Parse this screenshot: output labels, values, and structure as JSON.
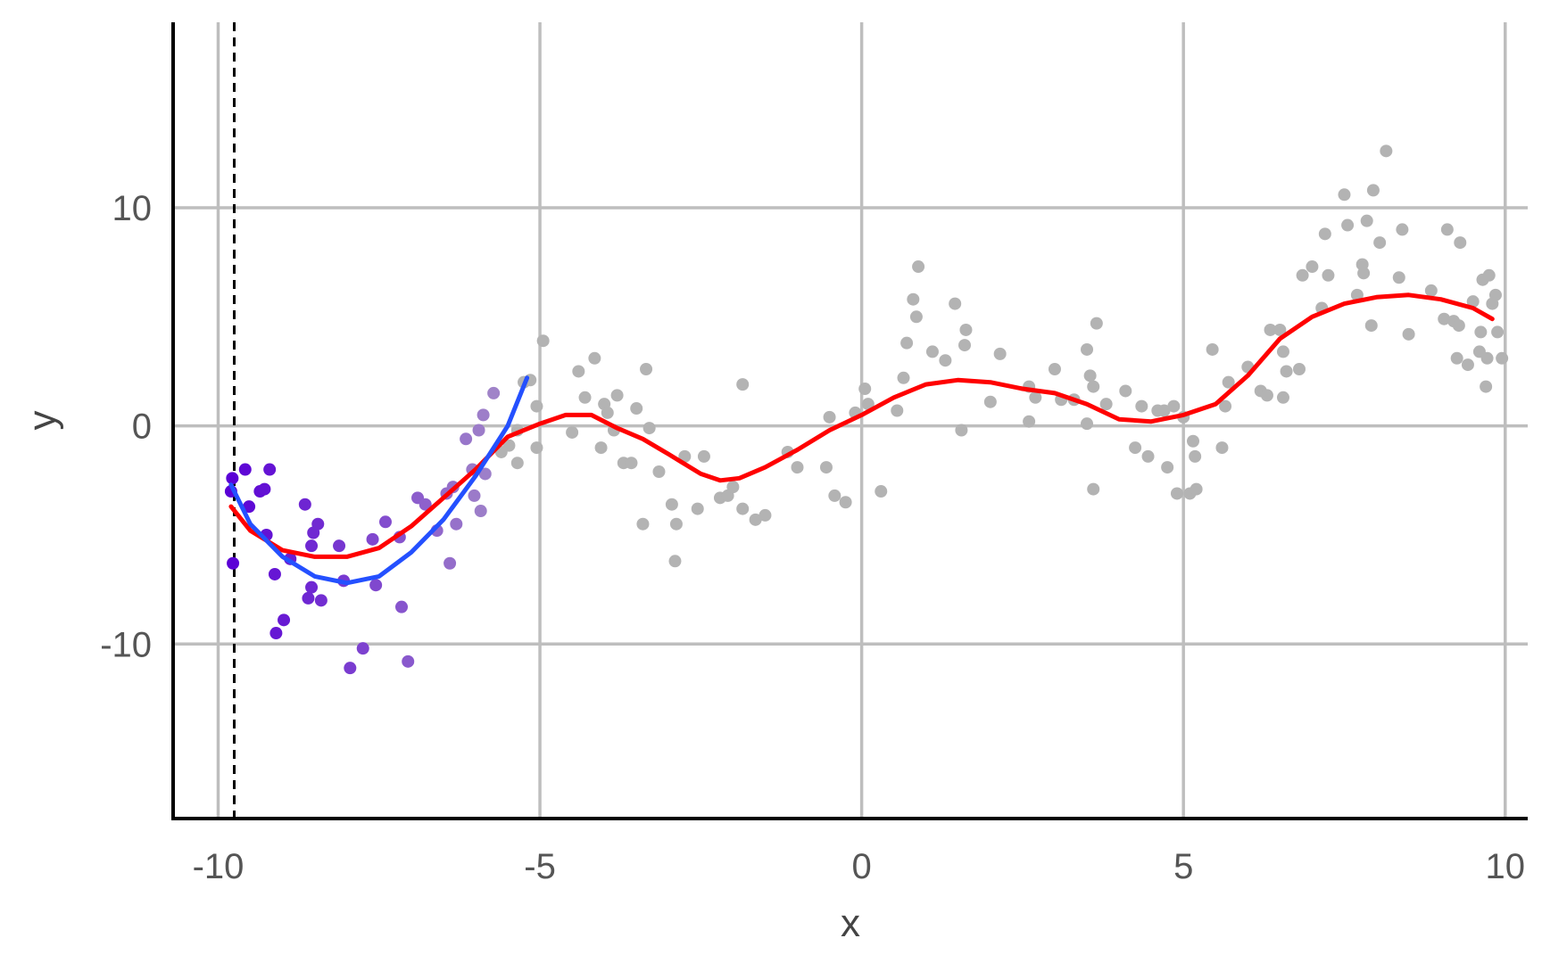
{
  "chart_data": {
    "type": "scatter",
    "title": "",
    "xlabel": "x",
    "ylabel": "y",
    "xlim": [
      -10.7,
      10.35
    ],
    "ylim": [
      -18,
      18.5
    ],
    "x_ticks": [
      -10,
      -5,
      0,
      5,
      10
    ],
    "x_tick_labels": [
      "-10",
      "-5",
      "0",
      "5",
      "10"
    ],
    "y_ticks": [
      -10,
      0,
      10
    ],
    "y_tick_labels": [
      "-10",
      "0",
      "10"
    ],
    "grid": true,
    "vline_x": -9.75,
    "colors": {
      "highlight_points_near": "#5a00d6",
      "highlight_points_far": "#a084c8",
      "background_points": "#b3b3b3",
      "global_smooth": "#ff0000",
      "local_fit": "#2450ff",
      "grid": "#bebebe",
      "axis": "#000000",
      "vline": "#000000"
    },
    "series": [
      {
        "kind": "scatter-highlight",
        "points": [
          [
            -9.78,
            -2.4
          ],
          [
            -9.8,
            -3
          ],
          [
            -9.77,
            -6.3
          ],
          [
            -9.58,
            -2
          ],
          [
            -9.52,
            -3.7
          ],
          [
            -9.35,
            -3
          ],
          [
            -9.28,
            -2.9
          ],
          [
            -9.2,
            -2
          ],
          [
            -9.25,
            -5
          ],
          [
            -9.12,
            -6.8
          ],
          [
            -9.1,
            -9.5
          ],
          [
            -8.98,
            -8.9
          ],
          [
            -8.88,
            -6.1
          ],
          [
            -8.65,
            -3.6
          ],
          [
            -8.6,
            -7.9
          ],
          [
            -8.55,
            -5.5
          ],
          [
            -8.52,
            -4.9
          ],
          [
            -8.55,
            -7.4
          ],
          [
            -8.45,
            -4.5
          ],
          [
            -8.4,
            -8
          ],
          [
            -8.12,
            -5.5
          ],
          [
            -8.05,
            -7.1
          ],
          [
            -7.95,
            -11.1
          ],
          [
            -7.75,
            -10.2
          ],
          [
            -7.6,
            -5.2
          ],
          [
            -7.55,
            -7.3
          ],
          [
            -7.4,
            -4.4
          ],
          [
            -7.18,
            -5.1
          ],
          [
            -7.15,
            -8.3
          ],
          [
            -7.05,
            -10.8
          ],
          [
            -6.9,
            -3.3
          ],
          [
            -6.78,
            -3.6
          ],
          [
            -6.6,
            -4.8
          ],
          [
            -6.45,
            -3.1
          ],
          [
            -6.4,
            -6.3
          ],
          [
            -6.35,
            -2.8
          ],
          [
            -6.3,
            -4.5
          ],
          [
            -6.15,
            -0.6
          ],
          [
            -6.05,
            -2
          ],
          [
            -6.02,
            -3.2
          ],
          [
            -5.95,
            -0.2
          ],
          [
            -5.92,
            -3.9
          ],
          [
            -5.85,
            -2.2
          ],
          [
            -5.88,
            0.5
          ],
          [
            -5.72,
            1.5
          ]
        ]
      },
      {
        "kind": "scatter-background",
        "points": [
          [
            -5.6,
            -1.2
          ],
          [
            -5.48,
            -0.9
          ],
          [
            -5.35,
            -1.7
          ],
          [
            -5.35,
            -0.2
          ],
          [
            -5.25,
            2
          ],
          [
            -5.15,
            2.1
          ],
          [
            -5.05,
            0.9
          ],
          [
            -5.05,
            -1
          ],
          [
            -4.95,
            3.9
          ],
          [
            -4.5,
            -0.3
          ],
          [
            -4.4,
            2.5
          ],
          [
            -4.3,
            1.3
          ],
          [
            -4.15,
            3.1
          ],
          [
            -4.05,
            -1
          ],
          [
            -4.0,
            1
          ],
          [
            -3.95,
            0.6
          ],
          [
            -3.85,
            -0.2
          ],
          [
            -3.8,
            1.4
          ],
          [
            -3.7,
            -1.7
          ],
          [
            -3.58,
            -1.7
          ],
          [
            -3.5,
            0.8
          ],
          [
            -3.4,
            -4.5
          ],
          [
            -3.35,
            2.6
          ],
          [
            -3.3,
            -0.1
          ],
          [
            -3.15,
            -2.1
          ],
          [
            -2.95,
            -3.6
          ],
          [
            -2.9,
            -6.2
          ],
          [
            -2.88,
            -4.5
          ],
          [
            -2.75,
            -1.4
          ],
          [
            -2.55,
            -3.8
          ],
          [
            -2.45,
            -1.4
          ],
          [
            -2.2,
            -3.3
          ],
          [
            -2.08,
            -3.2
          ],
          [
            -2.0,
            -2.8
          ],
          [
            -1.85,
            -3.8
          ],
          [
            -1.85,
            1.9
          ],
          [
            -1.65,
            -4.3
          ],
          [
            -1.5,
            -4.1
          ],
          [
            -1.15,
            -1.2
          ],
          [
            -1.0,
            -1.9
          ],
          [
            -0.55,
            -1.9
          ],
          [
            -0.5,
            0.4
          ],
          [
            -0.42,
            -3.2
          ],
          [
            -0.25,
            -3.5
          ],
          [
            -0.1,
            0.6
          ],
          [
            0.05,
            1.7
          ],
          [
            0.1,
            1
          ],
          [
            0.3,
            -3
          ],
          [
            0.55,
            0.7
          ],
          [
            0.65,
            2.2
          ],
          [
            0.7,
            3.8
          ],
          [
            0.8,
            5.8
          ],
          [
            0.85,
            5
          ],
          [
            0.88,
            7.3
          ],
          [
            1.1,
            3.4
          ],
          [
            1.3,
            3
          ],
          [
            1.45,
            5.6
          ],
          [
            1.55,
            -0.2
          ],
          [
            1.6,
            3.7
          ],
          [
            1.62,
            4.4
          ],
          [
            2.0,
            1.1
          ],
          [
            2.15,
            3.3
          ],
          [
            2.6,
            1.8
          ],
          [
            2.7,
            1.3
          ],
          [
            2.6,
            0.2
          ],
          [
            3.0,
            2.6
          ],
          [
            3.1,
            1.2
          ],
          [
            3.3,
            1.2
          ],
          [
            3.5,
            3.5
          ],
          [
            3.5,
            0.1
          ],
          [
            3.55,
            2.3
          ],
          [
            3.6,
            -2.9
          ],
          [
            3.6,
            1.8
          ],
          [
            3.65,
            4.7
          ],
          [
            3.8,
            1
          ],
          [
            4.1,
            1.6
          ],
          [
            4.25,
            -1
          ],
          [
            4.35,
            0.9
          ],
          [
            4.45,
            -1.4
          ],
          [
            4.6,
            0.7
          ],
          [
            4.7,
            0.7
          ],
          [
            4.75,
            -1.9
          ],
          [
            4.85,
            0.9
          ],
          [
            4.9,
            -3.1
          ],
          [
            5.0,
            0.4
          ],
          [
            5.1,
            -3.1
          ],
          [
            5.15,
            -0.7
          ],
          [
            5.18,
            -1.4
          ],
          [
            5.2,
            -2.9
          ],
          [
            5.45,
            3.5
          ],
          [
            5.6,
            -1
          ],
          [
            5.65,
            0.9
          ],
          [
            5.7,
            2
          ],
          [
            6.0,
            2.7
          ],
          [
            6.2,
            1.6
          ],
          [
            6.3,
            1.4
          ],
          [
            6.35,
            4.4
          ],
          [
            6.5,
            4.4
          ],
          [
            6.55,
            1.3
          ],
          [
            6.55,
            3.4
          ],
          [
            6.6,
            2.5
          ],
          [
            6.8,
            2.6
          ],
          [
            6.85,
            6.9
          ],
          [
            7.0,
            7.3
          ],
          [
            7.15,
            5.4
          ],
          [
            7.2,
            8.8
          ],
          [
            7.25,
            6.9
          ],
          [
            7.5,
            10.6
          ],
          [
            7.55,
            9.2
          ],
          [
            7.7,
            6
          ],
          [
            7.78,
            7.4
          ],
          [
            7.8,
            7
          ],
          [
            7.85,
            9.4
          ],
          [
            7.92,
            4.6
          ],
          [
            7.95,
            10.8
          ],
          [
            8.05,
            8.4
          ],
          [
            8.15,
            12.6
          ],
          [
            8.35,
            6.8
          ],
          [
            8.4,
            9
          ],
          [
            8.5,
            4.2
          ],
          [
            8.85,
            6.2
          ],
          [
            9.05,
            4.9
          ],
          [
            9.1,
            9
          ],
          [
            9.2,
            4.8
          ],
          [
            9.25,
            3.1
          ],
          [
            9.28,
            4.6
          ],
          [
            9.3,
            8.4
          ],
          [
            9.42,
            2.8
          ],
          [
            9.5,
            5.7
          ],
          [
            9.6,
            3.4
          ],
          [
            9.62,
            4.3
          ],
          [
            9.65,
            6.7
          ],
          [
            9.7,
            1.8
          ],
          [
            9.72,
            3.1
          ],
          [
            9.75,
            6.9
          ],
          [
            9.8,
            5.6
          ],
          [
            9.85,
            6
          ],
          [
            9.88,
            4.3
          ],
          [
            9.95,
            3.1
          ]
        ]
      },
      {
        "kind": "line-global-smooth",
        "points": [
          [
            -9.8,
            -3.7
          ],
          [
            -9.5,
            -4.8
          ],
          [
            -9.0,
            -5.7
          ],
          [
            -8.5,
            -6.0
          ],
          [
            -8.0,
            -6.0
          ],
          [
            -7.5,
            -5.6
          ],
          [
            -7.0,
            -4.6
          ],
          [
            -6.5,
            -3.3
          ],
          [
            -6.0,
            -2.0
          ],
          [
            -5.5,
            -0.5
          ],
          [
            -5.0,
            0.1
          ],
          [
            -4.6,
            0.5
          ],
          [
            -4.2,
            0.5
          ],
          [
            -3.8,
            -0.1
          ],
          [
            -3.4,
            -0.6
          ],
          [
            -3.0,
            -1.3
          ],
          [
            -2.5,
            -2.2
          ],
          [
            -2.2,
            -2.5
          ],
          [
            -1.9,
            -2.4
          ],
          [
            -1.5,
            -1.9
          ],
          [
            -1.0,
            -1.1
          ],
          [
            -0.5,
            -0.2
          ],
          [
            0.0,
            0.5
          ],
          [
            0.5,
            1.3
          ],
          [
            1.0,
            1.9
          ],
          [
            1.5,
            2.1
          ],
          [
            2.0,
            2.0
          ],
          [
            2.5,
            1.7
          ],
          [
            3.0,
            1.5
          ],
          [
            3.5,
            1.0
          ],
          [
            4.0,
            0.3
          ],
          [
            4.5,
            0.2
          ],
          [
            5.0,
            0.5
          ],
          [
            5.5,
            1.0
          ],
          [
            6.0,
            2.3
          ],
          [
            6.5,
            4.0
          ],
          [
            7.0,
            5.0
          ],
          [
            7.5,
            5.6
          ],
          [
            8.0,
            5.9
          ],
          [
            8.5,
            6.0
          ],
          [
            9.0,
            5.8
          ],
          [
            9.5,
            5.4
          ],
          [
            9.8,
            4.9
          ]
        ]
      },
      {
        "kind": "line-local-fit",
        "points": [
          [
            -9.8,
            -2.7
          ],
          [
            -9.5,
            -4.5
          ],
          [
            -9.0,
            -6.0
          ],
          [
            -8.5,
            -6.9
          ],
          [
            -8.0,
            -7.2
          ],
          [
            -7.5,
            -6.9
          ],
          [
            -7.0,
            -5.8
          ],
          [
            -6.5,
            -4.3
          ],
          [
            -6.0,
            -2.3
          ],
          [
            -5.5,
            0.0
          ],
          [
            -5.2,
            2.2
          ]
        ]
      }
    ]
  }
}
